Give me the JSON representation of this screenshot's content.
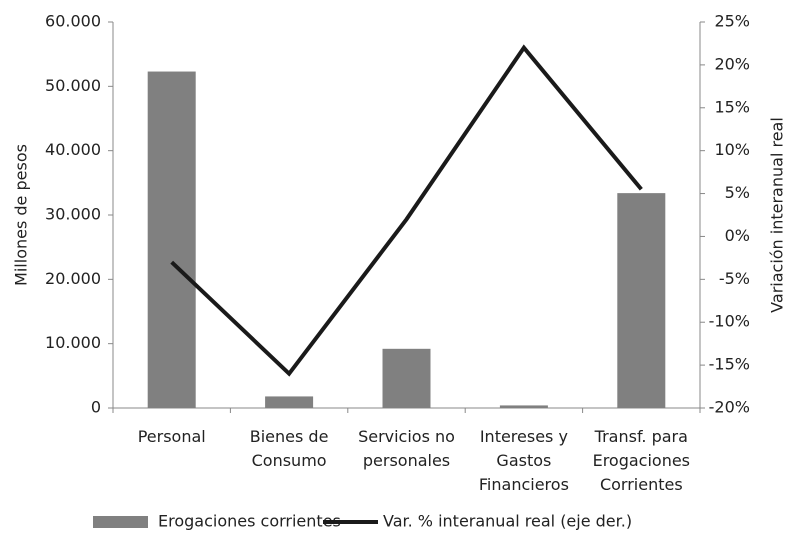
{
  "chart_data": {
    "type": "bar",
    "categories": [
      "Personal",
      "Bienes de\nConsumo",
      "Servicios no\npersonales",
      "Intereses y\nGastos\nFinancieros",
      "Transf. para\nErogaciones\nCorrientes"
    ],
    "series": [
      {
        "name": "Erogaciones corrientes",
        "type": "bar",
        "color": "#808080",
        "values": [
          52300,
          1800,
          9200,
          400,
          33400
        ]
      },
      {
        "name": "Var. % interanual real (eje der.)",
        "type": "line",
        "axis": "y2",
        "color": "#1a1a1a",
        "values": [
          -3,
          -16,
          2,
          22,
          5.5
        ]
      }
    ],
    "ylabel": "Millones de pesos",
    "y2label": "Variación interanual real",
    "ylim": [
      0,
      60000
    ],
    "yticks": [
      0,
      {
        "value": 10000,
        "label": "10.000"
      },
      {
        "value": 20000,
        "label": "20.000"
      },
      {
        "value": 30000,
        "label": "30.000"
      },
      {
        "value": 40000,
        "label": "40.000"
      },
      {
        "value": 50000,
        "label": "50.000"
      },
      {
        "value": 60000,
        "label": "60.000"
      }
    ],
    "y2lim": [
      -20,
      25
    ],
    "y2ticks": [
      {
        "value": -20,
        "label": "-20%"
      },
      {
        "value": -15,
        "label": "-15%"
      },
      {
        "value": -10,
        "label": "-10%"
      },
      {
        "value": -5,
        "label": "-5%"
      },
      {
        "value": 0,
        "label": "0%"
      },
      {
        "value": 5,
        "label": "5%"
      },
      {
        "value": 10,
        "label": "10%"
      },
      {
        "value": 15,
        "label": "15%"
      },
      {
        "value": 20,
        "label": "20%"
      },
      {
        "value": 25,
        "label": "25%"
      }
    ],
    "grid": false,
    "legend": "bottom"
  }
}
